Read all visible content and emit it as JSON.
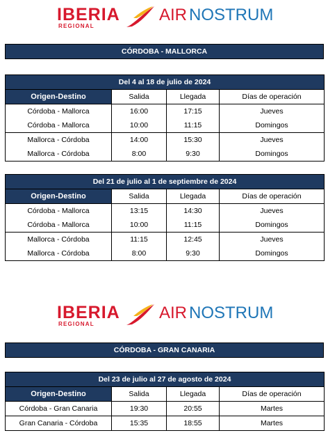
{
  "logos": [
    {
      "brand": "IBERIA",
      "sub": "REGIONAL",
      "partner_a": "AIR",
      "partner_b": "NOSTRUM"
    },
    {
      "brand": "IBERIA",
      "sub": "REGIONAL",
      "partner_a": "AIR",
      "partner_b": "NOSTRUM"
    }
  ],
  "colors": {
    "iberia_red": "#d7192d",
    "iberia_yellow": "#f5b21b",
    "nostrum_blue": "#1f76b7",
    "header_navy": "#1f3a60"
  },
  "routes": [
    {
      "title": "CÓRDOBA - MALLORCA",
      "blocks": [
        {
          "period": "Del 4 al 18 de julio de 2024",
          "headers": [
            "Origen-Destino",
            "Salida",
            "Llegada",
            "Días de operación"
          ],
          "rows": [
            [
              "Córdoba - Mallorca",
              "16:00",
              "17:15",
              "Jueves"
            ],
            [
              "Córdoba - Mallorca",
              "10:00",
              "11:15",
              "Domingos"
            ],
            [
              "Mallorca - Córdoba",
              "14:00",
              "15:30",
              "Jueves"
            ],
            [
              "Mallorca - Córdoba",
              "8:00",
              "9:30",
              "Domingos"
            ]
          ]
        },
        {
          "period": "Del 21 de julio al 1 de septiembre de 2024",
          "headers": [
            "Origen-Destino",
            "Salida",
            "Llegada",
            "Días de operación"
          ],
          "rows": [
            [
              "Córdoba - Mallorca",
              "13:15",
              "14:30",
              "Jueves"
            ],
            [
              "Córdoba - Mallorca",
              "10:00",
              "11:15",
              "Domingos"
            ],
            [
              "Mallorca - Córdoba",
              "11:15",
              "12:45",
              "Jueves"
            ],
            [
              "Mallorca - Córdoba",
              "8:00",
              "9:30",
              "Domingos"
            ]
          ]
        }
      ]
    },
    {
      "title": "CÓRDOBA - GRAN CANARIA",
      "blocks": [
        {
          "period": "Del 23 de julio al 27 de agosto de 2024",
          "headers": [
            "Origen-Destino",
            "Salida",
            "Llegada",
            "Días de operación"
          ],
          "rows": [
            [
              "Córdoba - Gran Canaria",
              "19:30",
              "20:55",
              "Martes"
            ],
            [
              "Gran Canaria - Córdoba",
              "15:35",
              "18:55",
              "Martes"
            ]
          ]
        }
      ]
    }
  ]
}
